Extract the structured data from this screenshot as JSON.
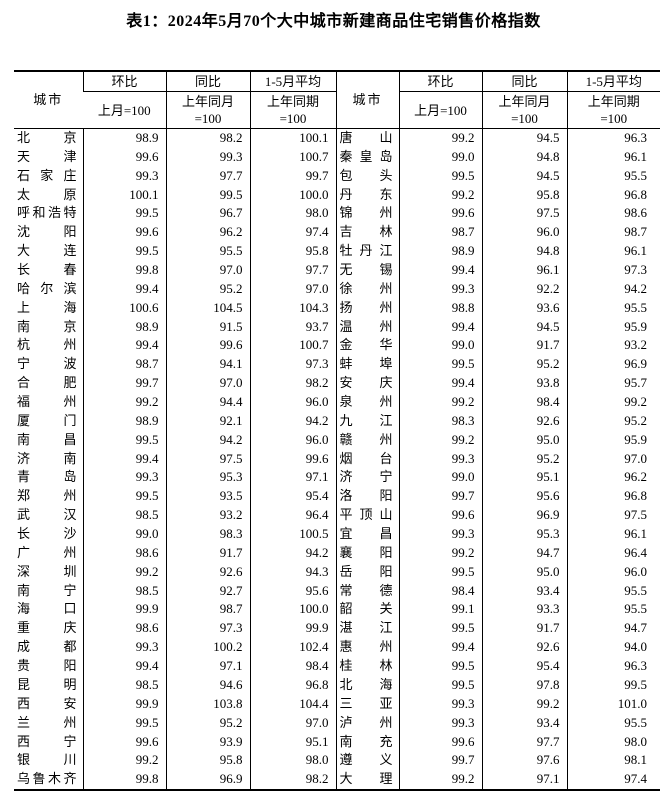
{
  "page": {
    "title": "表1：2024年5月70个大中城市新建商品住宅销售价格指数"
  },
  "table": {
    "header": {
      "city_label": "城市",
      "mom_label": "环比",
      "mom_base": "上月=100",
      "yoy_label": "同比",
      "yoy_base": "上年同月\n=100",
      "avg_label": "1-5月平均",
      "avg_base": "上年同期\n=100"
    },
    "left_rows": [
      {
        "city": "北京",
        "mom": "98.9",
        "yoy": "98.2",
        "avg": "100.1"
      },
      {
        "city": "天津",
        "mom": "99.6",
        "yoy": "99.3",
        "avg": "100.7"
      },
      {
        "city": "石家庄",
        "mom": "99.3",
        "yoy": "97.7",
        "avg": "99.7"
      },
      {
        "city": "太原",
        "mom": "100.1",
        "yoy": "99.5",
        "avg": "100.0"
      },
      {
        "city": "呼和浩特",
        "mom": "99.5",
        "yoy": "96.7",
        "avg": "98.0"
      },
      {
        "city": "沈阳",
        "mom": "99.6",
        "yoy": "96.2",
        "avg": "97.4"
      },
      {
        "city": "大连",
        "mom": "99.5",
        "yoy": "95.5",
        "avg": "95.8"
      },
      {
        "city": "长春",
        "mom": "99.8",
        "yoy": "97.0",
        "avg": "97.7"
      },
      {
        "city": "哈尔滨",
        "mom": "99.4",
        "yoy": "95.2",
        "avg": "97.0"
      },
      {
        "city": "上海",
        "mom": "100.6",
        "yoy": "104.5",
        "avg": "104.3"
      },
      {
        "city": "南京",
        "mom": "98.9",
        "yoy": "91.5",
        "avg": "93.7"
      },
      {
        "city": "杭州",
        "mom": "99.4",
        "yoy": "99.6",
        "avg": "100.7"
      },
      {
        "city": "宁波",
        "mom": "98.7",
        "yoy": "94.1",
        "avg": "97.3"
      },
      {
        "city": "合肥",
        "mom": "99.7",
        "yoy": "97.0",
        "avg": "98.2"
      },
      {
        "city": "福州",
        "mom": "99.2",
        "yoy": "94.4",
        "avg": "96.0"
      },
      {
        "city": "厦门",
        "mom": "98.9",
        "yoy": "92.1",
        "avg": "94.2"
      },
      {
        "city": "南昌",
        "mom": "99.5",
        "yoy": "94.2",
        "avg": "96.0"
      },
      {
        "city": "济南",
        "mom": "99.4",
        "yoy": "97.5",
        "avg": "99.6"
      },
      {
        "city": "青岛",
        "mom": "99.3",
        "yoy": "95.3",
        "avg": "97.1"
      },
      {
        "city": "郑州",
        "mom": "99.5",
        "yoy": "93.5",
        "avg": "95.4"
      },
      {
        "city": "武汉",
        "mom": "98.5",
        "yoy": "93.2",
        "avg": "96.4"
      },
      {
        "city": "长沙",
        "mom": "99.0",
        "yoy": "98.3",
        "avg": "100.5"
      },
      {
        "city": "广州",
        "mom": "98.6",
        "yoy": "91.7",
        "avg": "94.2"
      },
      {
        "city": "深圳",
        "mom": "99.2",
        "yoy": "92.6",
        "avg": "94.3"
      },
      {
        "city": "南宁",
        "mom": "98.5",
        "yoy": "92.7",
        "avg": "95.6"
      },
      {
        "city": "海口",
        "mom": "99.9",
        "yoy": "98.7",
        "avg": "100.0"
      },
      {
        "city": "重庆",
        "mom": "98.6",
        "yoy": "97.3",
        "avg": "99.9"
      },
      {
        "city": "成都",
        "mom": "99.3",
        "yoy": "100.2",
        "avg": "102.4"
      },
      {
        "city": "贵阳",
        "mom": "99.4",
        "yoy": "97.1",
        "avg": "98.4"
      },
      {
        "city": "昆明",
        "mom": "98.5",
        "yoy": "94.6",
        "avg": "96.8"
      },
      {
        "city": "西安",
        "mom": "99.9",
        "yoy": "103.8",
        "avg": "104.4"
      },
      {
        "city": "兰州",
        "mom": "99.5",
        "yoy": "95.2",
        "avg": "97.0"
      },
      {
        "city": "西宁",
        "mom": "99.6",
        "yoy": "93.9",
        "avg": "95.1"
      },
      {
        "city": "银川",
        "mom": "99.2",
        "yoy": "95.8",
        "avg": "98.0"
      },
      {
        "city": "乌鲁木齐",
        "mom": "99.8",
        "yoy": "96.9",
        "avg": "98.2"
      }
    ],
    "right_rows": [
      {
        "city": "唐山",
        "mom": "99.2",
        "yoy": "94.5",
        "avg": "96.3"
      },
      {
        "city": "秦皇岛",
        "mom": "99.0",
        "yoy": "94.8",
        "avg": "96.1"
      },
      {
        "city": "包头",
        "mom": "99.5",
        "yoy": "94.5",
        "avg": "95.5"
      },
      {
        "city": "丹东",
        "mom": "99.2",
        "yoy": "95.8",
        "avg": "96.8"
      },
      {
        "city": "锦州",
        "mom": "99.6",
        "yoy": "97.5",
        "avg": "98.6"
      },
      {
        "city": "吉林",
        "mom": "98.7",
        "yoy": "96.0",
        "avg": "98.7"
      },
      {
        "city": "牡丹江",
        "mom": "98.9",
        "yoy": "94.8",
        "avg": "96.1"
      },
      {
        "city": "无锡",
        "mom": "99.4",
        "yoy": "96.1",
        "avg": "97.3"
      },
      {
        "city": "徐州",
        "mom": "99.3",
        "yoy": "92.2",
        "avg": "94.2"
      },
      {
        "city": "扬州",
        "mom": "98.8",
        "yoy": "93.6",
        "avg": "95.5"
      },
      {
        "city": "温州",
        "mom": "99.4",
        "yoy": "94.5",
        "avg": "95.9"
      },
      {
        "city": "金华",
        "mom": "99.0",
        "yoy": "91.7",
        "avg": "93.2"
      },
      {
        "city": "蚌埠",
        "mom": "99.5",
        "yoy": "95.2",
        "avg": "96.9"
      },
      {
        "city": "安庆",
        "mom": "99.4",
        "yoy": "93.8",
        "avg": "95.7"
      },
      {
        "city": "泉州",
        "mom": "99.2",
        "yoy": "98.4",
        "avg": "99.2"
      },
      {
        "city": "九江",
        "mom": "98.3",
        "yoy": "92.6",
        "avg": "95.2"
      },
      {
        "city": "赣州",
        "mom": "99.2",
        "yoy": "95.0",
        "avg": "95.9"
      },
      {
        "city": "烟台",
        "mom": "99.3",
        "yoy": "95.2",
        "avg": "97.0"
      },
      {
        "city": "济宁",
        "mom": "99.0",
        "yoy": "95.1",
        "avg": "96.2"
      },
      {
        "city": "洛阳",
        "mom": "99.7",
        "yoy": "95.6",
        "avg": "96.8"
      },
      {
        "city": "平顶山",
        "mom": "99.6",
        "yoy": "96.9",
        "avg": "97.5"
      },
      {
        "city": "宜昌",
        "mom": "99.3",
        "yoy": "95.3",
        "avg": "96.1"
      },
      {
        "city": "襄阳",
        "mom": "99.2",
        "yoy": "94.7",
        "avg": "96.4"
      },
      {
        "city": "岳阳",
        "mom": "99.5",
        "yoy": "95.0",
        "avg": "96.0"
      },
      {
        "city": "常德",
        "mom": "98.4",
        "yoy": "93.4",
        "avg": "95.5"
      },
      {
        "city": "韶关",
        "mom": "99.1",
        "yoy": "93.3",
        "avg": "95.5"
      },
      {
        "city": "湛江",
        "mom": "99.5",
        "yoy": "91.7",
        "avg": "94.7"
      },
      {
        "city": "惠州",
        "mom": "99.4",
        "yoy": "92.6",
        "avg": "94.0"
      },
      {
        "city": "桂林",
        "mom": "99.5",
        "yoy": "95.4",
        "avg": "96.3"
      },
      {
        "city": "北海",
        "mom": "99.5",
        "yoy": "97.8",
        "avg": "99.5"
      },
      {
        "city": "三亚",
        "mom": "99.3",
        "yoy": "99.2",
        "avg": "101.0"
      },
      {
        "city": "泸州",
        "mom": "99.3",
        "yoy": "93.4",
        "avg": "95.5"
      },
      {
        "city": "南充",
        "mom": "99.6",
        "yoy": "97.7",
        "avg": "98.0"
      },
      {
        "city": "遵义",
        "mom": "99.7",
        "yoy": "97.6",
        "avg": "98.1"
      },
      {
        "city": "大理",
        "mom": "99.2",
        "yoy": "97.1",
        "avg": "97.4"
      }
    ]
  }
}
